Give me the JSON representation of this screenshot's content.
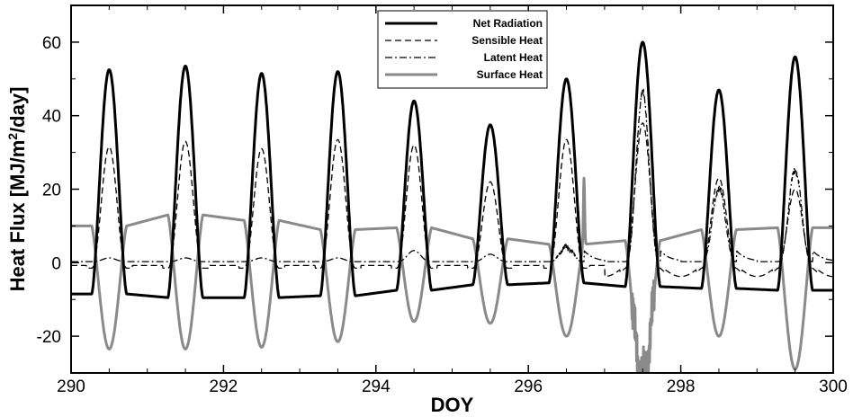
{
  "chart_data": {
    "type": "line",
    "title": "",
    "xlabel": "DOY",
    "ylabel_parts": [
      "Heat Flux [MJ/m",
      "2",
      "/day]"
    ],
    "xlim": [
      290,
      300
    ],
    "ylim": [
      -30,
      70
    ],
    "x_ticks": [
      290,
      292,
      294,
      296,
      298,
      300
    ],
    "y_ticks": [
      -20,
      0,
      20,
      40,
      60
    ],
    "grid": false,
    "legend_position": "top-center",
    "daily_peaks": {
      "days": [
        290,
        291,
        292,
        293,
        294,
        295,
        296,
        297,
        298,
        299
      ],
      "net_radiation_peak": [
        52.5,
        53.5,
        51.5,
        52,
        44,
        37.5,
        50,
        60,
        47,
        56
      ],
      "net_radiation_night": [
        -8.5,
        -9.5,
        -9.5,
        -9,
        -7.5,
        -6,
        -5.5,
        -6.5,
        -7,
        -7.5
      ],
      "sensible_heat_peak": [
        31.5,
        33,
        31,
        33.5,
        32,
        22,
        33.5,
        38,
        23,
        20
      ],
      "latent_heat_peak": [
        1,
        1,
        1,
        1,
        3,
        2,
        4,
        46,
        20,
        25
      ],
      "surface_heat_min": [
        -23.5,
        -23.5,
        -23,
        -21.5,
        -16,
        -16.5,
        -20,
        -31,
        -20,
        -29
      ],
      "surface_heat_night": [
        10,
        13,
        11.5,
        9,
        9.5,
        6.5,
        5,
        6,
        9,
        9.5
      ]
    },
    "series": [
      {
        "name": "Net Radiation",
        "color": "#000000",
        "style": "solid-thick"
      },
      {
        "name": "Sensible Heat",
        "color": "#000000",
        "style": "dashed"
      },
      {
        "name": "Latent Heat",
        "color": "#000000",
        "style": "dash-dot"
      },
      {
        "name": "Surface Heat",
        "color": "#8a8a8a",
        "style": "solid-thick"
      }
    ]
  }
}
